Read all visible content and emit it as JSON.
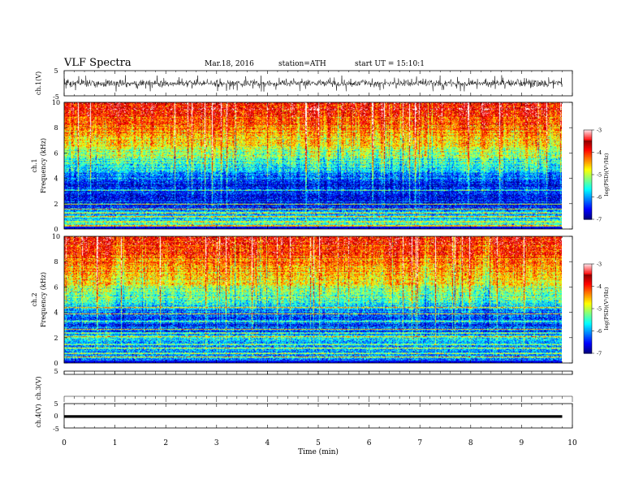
{
  "header": {
    "title": "VLF Spectra",
    "date": "Mar.18, 2016",
    "station": "station=ATH",
    "start": "start  UT =   15:10:1"
  },
  "chart_data": [
    {
      "type": "line",
      "name": "ch1-waveform",
      "ylabel": "ch.1(V)",
      "ylim": [
        -5,
        5
      ],
      "yticks": [
        "5",
        "-5"
      ],
      "xlim": [
        0,
        10
      ],
      "data_extent_min": [
        0,
        9.8
      ],
      "description_level": {
        "baseline_v": 0,
        "typical_amplitude_v": 1.2,
        "spike_amplitude_v": 3
      }
    },
    {
      "type": "heatmap",
      "name": "ch1-spectrogram",
      "ylabel_channel": "ch.1",
      "ylabel": "Frequency (kHz)",
      "ylim": [
        0,
        10
      ],
      "yticks": [
        "0",
        "2",
        "4",
        "6",
        "8",
        "10"
      ],
      "xlim": [
        0,
        10
      ],
      "colorbar": {
        "label": "log(PSD)(V²/Hz)",
        "ticks": [
          "-3",
          "-4",
          "-5",
          "-6",
          "-7"
        ],
        "range": [
          -7,
          -3
        ]
      },
      "profile_khz_vs_logpsd": [
        [
          0,
          -5.5
        ],
        [
          1,
          -5.8
        ],
        [
          2,
          -6.6
        ],
        [
          3,
          -6.5
        ],
        [
          4,
          -6.2
        ],
        [
          5,
          -5.6
        ],
        [
          6,
          -5.0
        ],
        [
          7,
          -4.6
        ],
        [
          8,
          -4.2
        ],
        [
          9,
          -3.9
        ],
        [
          10,
          -3.7
        ]
      ],
      "bands_khz": [
        0.3,
        0.6,
        1.0,
        1.3,
        1.6,
        2.0,
        3.1
      ]
    },
    {
      "type": "heatmap",
      "name": "ch2-spectrogram",
      "ylabel_channel": "ch.2",
      "ylabel": "Frequency (kHz)",
      "ylim": [
        0,
        10
      ],
      "yticks": [
        "0",
        "2",
        "4",
        "6",
        "8",
        "10"
      ],
      "xlim": [
        0,
        10
      ],
      "colorbar": {
        "label": "log(PSD)(V²/Hz)",
        "ticks": [
          "-3",
          "-4",
          "-5",
          "-6",
          "-7"
        ],
        "range": [
          -7,
          -3
        ]
      },
      "profile_khz_vs_logpsd": [
        [
          0,
          -6.0
        ],
        [
          1,
          -6.1
        ],
        [
          2,
          -5.9
        ],
        [
          3,
          -6.4
        ],
        [
          4,
          -6.2
        ],
        [
          5,
          -5.5
        ],
        [
          6,
          -5.0
        ],
        [
          7,
          -4.6
        ],
        [
          8,
          -4.3
        ],
        [
          9,
          -4.0
        ],
        [
          10,
          -3.8
        ]
      ],
      "bands_khz": [
        0.2,
        0.5,
        0.8,
        1.2,
        1.5,
        2.1,
        2.4,
        2.7,
        3.3,
        3.9,
        4.4
      ]
    },
    {
      "type": "line",
      "name": "ch3-waveform",
      "ylabel": "ch.3(V)",
      "ylim": [
        -5,
        5
      ],
      "yticks": [
        "5"
      ],
      "xlim": [
        0,
        10
      ]
    },
    {
      "type": "line",
      "name": "ch4-waveform",
      "ylabel": "ch.4(V)",
      "ylim": [
        -5,
        5
      ],
      "yticks": [
        "5",
        "0",
        "-5"
      ],
      "xlim": [
        0,
        10
      ],
      "xlabel": "Time  (min)",
      "xticks": [
        "0",
        "1",
        "2",
        "3",
        "4",
        "5",
        "6",
        "7",
        "8",
        "9",
        "10"
      ],
      "trace_level_v": -0.3
    }
  ]
}
